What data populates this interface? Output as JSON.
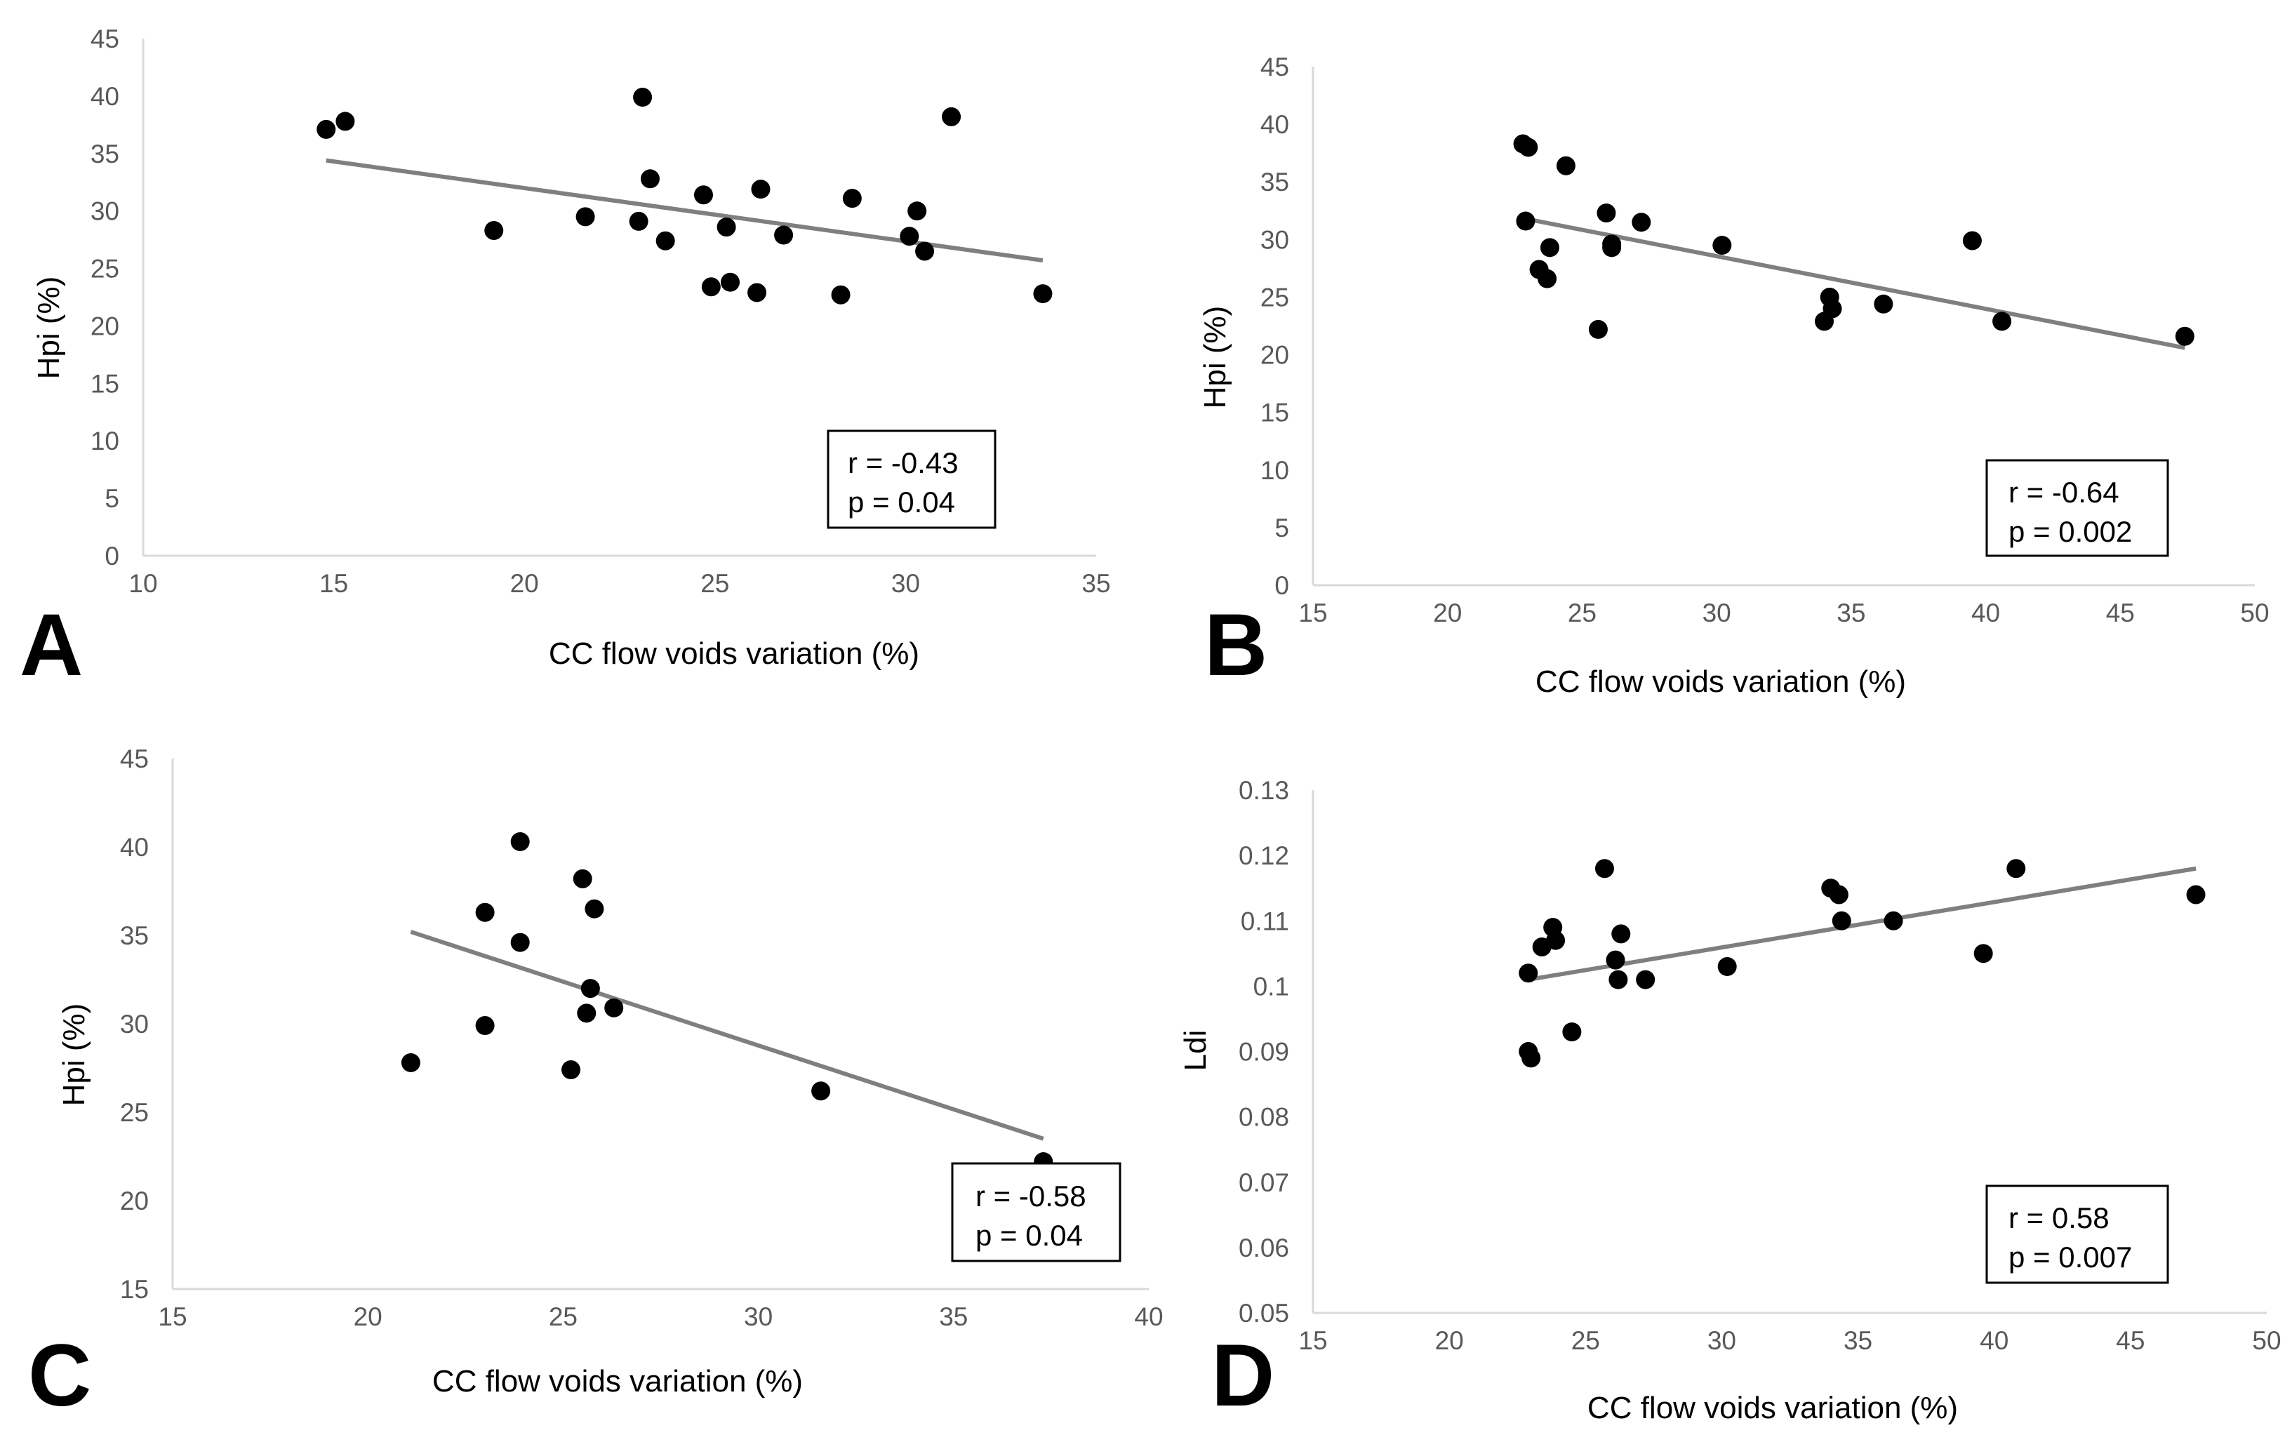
{
  "colors": {
    "point": "#000000",
    "trend": "#7f7f7f",
    "axis": "#d9d9d9",
    "tick_text": "#595959"
  },
  "chart_data": [
    {
      "type": "scatter",
      "panel": "A",
      "xlabel": "CC flow voids variation (%)",
      "ylabel": "Hpi (%)",
      "xlim": [
        10,
        35
      ],
      "ylim": [
        0,
        45
      ],
      "xticks": [
        10,
        15,
        20,
        25,
        30,
        35
      ],
      "yticks": [
        0,
        5,
        10,
        15,
        20,
        25,
        30,
        35,
        40,
        45
      ],
      "grid": false,
      "points": [
        [
          14.8,
          37.1
        ],
        [
          15.3,
          37.8
        ],
        [
          19.2,
          28.3
        ],
        [
          21.6,
          29.5
        ],
        [
          23.0,
          29.1
        ],
        [
          23.1,
          39.9
        ],
        [
          23.3,
          32.8
        ],
        [
          23.7,
          27.4
        ],
        [
          24.7,
          31.4
        ],
        [
          24.9,
          23.4
        ],
        [
          25.3,
          28.6
        ],
        [
          25.4,
          23.8
        ],
        [
          26.1,
          22.9
        ],
        [
          26.2,
          31.9
        ],
        [
          26.8,
          27.9
        ],
        [
          28.3,
          22.7
        ],
        [
          28.6,
          31.1
        ],
        [
          30.1,
          27.8
        ],
        [
          30.3,
          30.0
        ],
        [
          30.5,
          26.5
        ],
        [
          31.2,
          38.2
        ],
        [
          33.6,
          22.8
        ]
      ],
      "trendline": {
        "x": [
          14.8,
          33.6
        ],
        "y": [
          34.4,
          25.7
        ]
      },
      "annotation": [
        "r = -0.43",
        "p = 0.04"
      ]
    },
    {
      "type": "scatter",
      "panel": "B",
      "xlabel": "CC flow voids variation (%)",
      "ylabel": "Hpi (%)",
      "xlim": [
        15,
        50
      ],
      "ylim": [
        0,
        45
      ],
      "xticks": [
        15,
        20,
        25,
        30,
        35,
        40,
        45,
        50
      ],
      "yticks": [
        0,
        5,
        10,
        15,
        20,
        25,
        30,
        35,
        40,
        45
      ],
      "grid": false,
      "points": [
        [
          22.8,
          38.3
        ],
        [
          23.0,
          38.0
        ],
        [
          22.9,
          31.6
        ],
        [
          23.4,
          27.4
        ],
        [
          23.7,
          26.6
        ],
        [
          23.8,
          29.3
        ],
        [
          24.4,
          36.4
        ],
        [
          25.6,
          22.2
        ],
        [
          25.9,
          32.3
        ],
        [
          26.1,
          29.3
        ],
        [
          26.1,
          29.6
        ],
        [
          27.2,
          31.5
        ],
        [
          30.2,
          29.5
        ],
        [
          34.0,
          22.9
        ],
        [
          34.2,
          25.0
        ],
        [
          34.3,
          24.0
        ],
        [
          36.2,
          24.4
        ],
        [
          39.5,
          29.9
        ],
        [
          40.6,
          22.9
        ],
        [
          47.4,
          21.6
        ]
      ],
      "trendline": {
        "x": [
          22.9,
          47.4
        ],
        "y": [
          31.8,
          20.6
        ]
      },
      "annotation": [
        "r = -0.64",
        "p = 0.002"
      ]
    },
    {
      "type": "scatter",
      "panel": "C",
      "xlabel": "CC flow voids variation (%)",
      "ylabel": "Hpi (%)",
      "xlim": [
        15,
        40
      ],
      "ylim": [
        15,
        45
      ],
      "xticks": [
        15,
        20,
        25,
        30,
        35,
        40
      ],
      "yticks": [
        15,
        20,
        25,
        30,
        35,
        40,
        45
      ],
      "grid": false,
      "points": [
        [
          21.1,
          27.8
        ],
        [
          23.0,
          36.3
        ],
        [
          23.0,
          29.9
        ],
        [
          23.9,
          34.6
        ],
        [
          23.9,
          40.3
        ],
        [
          25.2,
          27.4
        ],
        [
          25.5,
          38.2
        ],
        [
          25.6,
          30.6
        ],
        [
          25.7,
          32.0
        ],
        [
          25.8,
          36.5
        ],
        [
          26.3,
          30.9
        ],
        [
          31.6,
          26.2
        ],
        [
          37.3,
          22.2
        ]
      ],
      "trendline": {
        "x": [
          21.1,
          37.3
        ],
        "y": [
          35.2,
          23.5
        ]
      },
      "annotation": [
        "r = -0.58",
        "p = 0.04"
      ]
    },
    {
      "type": "scatter",
      "panel": "D",
      "xlabel": "CC flow voids variation (%)",
      "ylabel": "Ldi",
      "xlim": [
        15,
        50
      ],
      "ylim": [
        0.05,
        0.13
      ],
      "xticks": [
        15,
        20,
        25,
        30,
        35,
        40,
        45,
        50
      ],
      "yticks": [
        0.05,
        0.06,
        0.07,
        0.08,
        0.09,
        0.1,
        0.11,
        0.12,
        0.13
      ],
      "grid": false,
      "points": [
        [
          22.9,
          0.09
        ],
        [
          23.0,
          0.089
        ],
        [
          22.9,
          0.102
        ],
        [
          23.4,
          0.106
        ],
        [
          23.8,
          0.109
        ],
        [
          23.9,
          0.107
        ],
        [
          24.5,
          0.093
        ],
        [
          25.7,
          0.118
        ],
        [
          26.1,
          0.104
        ],
        [
          26.2,
          0.101
        ],
        [
          26.3,
          0.108
        ],
        [
          27.2,
          0.101
        ],
        [
          30.2,
          0.103
        ],
        [
          34.0,
          0.115
        ],
        [
          34.3,
          0.114
        ],
        [
          34.4,
          0.11
        ],
        [
          36.3,
          0.11
        ],
        [
          39.6,
          0.105
        ],
        [
          40.8,
          0.118
        ],
        [
          47.4,
          0.114
        ]
      ],
      "trendline": {
        "x": [
          22.9,
          47.4
        ],
        "y": [
          0.101,
          0.118
        ]
      },
      "annotation": [
        "r = 0.58",
        "p = 0.007"
      ]
    }
  ]
}
